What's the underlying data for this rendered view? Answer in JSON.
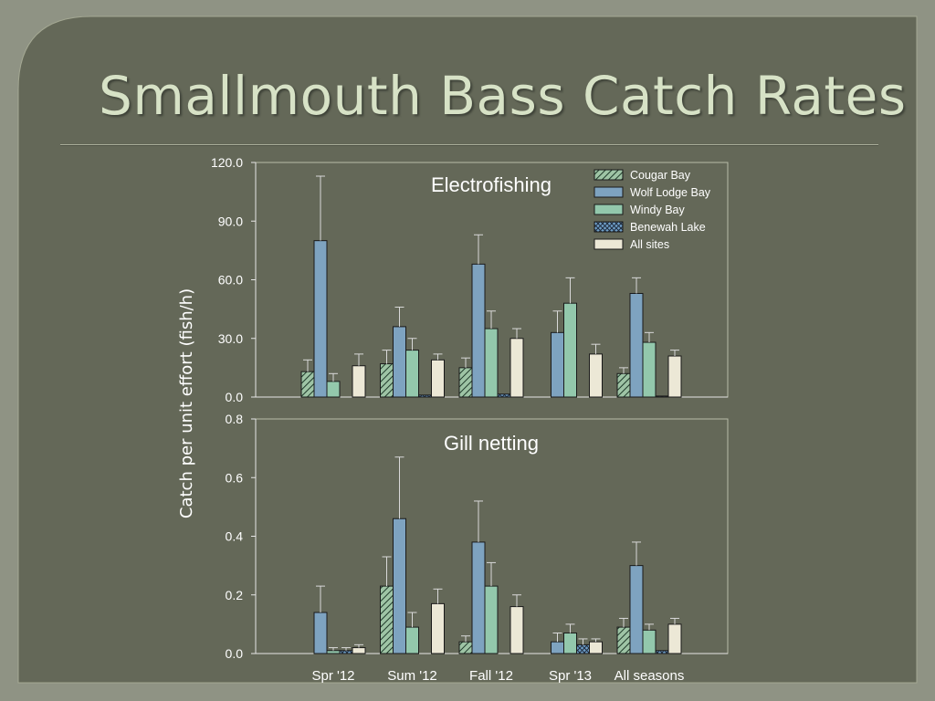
{
  "slide": {
    "title": "Smallmouth Bass Catch Rates",
    "colors": {
      "background": "#646858",
      "outer": "#8f9384",
      "title_text": "#d7e2c6",
      "axis_text": "#ffffff"
    }
  },
  "chart_data": {
    "type": "bar",
    "ylabel": "Catch per unit effort (fish/h)",
    "categories": [
      "Spr '12",
      "Sum '12",
      "Fall '12",
      "Spr '13",
      "All seasons"
    ],
    "legend": {
      "placement": "top-right",
      "entries": [
        {
          "name": "Cougar Bay",
          "color": "#9ec4a5",
          "pattern": "diagonal-hatch"
        },
        {
          "name": "Wolf Lodge Bay",
          "color": "#7ea3c0",
          "pattern": "solid"
        },
        {
          "name": "Windy Bay",
          "color": "#93c8ac",
          "pattern": "solid"
        },
        {
          "name": "Benewah Lake",
          "color": "#6f9fc8",
          "pattern": "crosshatch"
        },
        {
          "name": "All sites",
          "color": "#ece8d6",
          "pattern": "solid"
        }
      ]
    },
    "panels": [
      {
        "title": "Electrofishing",
        "ylim": [
          0,
          120
        ],
        "yticks": [
          "0.0",
          "30.0",
          "60.0",
          "90.0",
          "120.0"
        ],
        "series": [
          {
            "name": "Cougar Bay",
            "values": [
              13,
              17,
              15,
              null,
              12
            ],
            "errors": [
              19,
              24,
              20,
              null,
              15
            ]
          },
          {
            "name": "Wolf Lodge Bay",
            "values": [
              80,
              36,
              68,
              33,
              53
            ],
            "errors": [
              113,
              46,
              83,
              44,
              61
            ]
          },
          {
            "name": "Windy Bay",
            "values": [
              8,
              24,
              35,
              48,
              28
            ],
            "errors": [
              12,
              30,
              44,
              61,
              33
            ]
          },
          {
            "name": "Benewah Lake",
            "values": [
              null,
              1,
              1.5,
              null,
              0.5
            ],
            "errors": [
              null,
              null,
              null,
              null,
              null
            ]
          },
          {
            "name": "All sites",
            "values": [
              16,
              19,
              30,
              22,
              21
            ],
            "errors": [
              22,
              22,
              35,
              27,
              24
            ]
          }
        ]
      },
      {
        "title": "Gill netting",
        "ylim": [
          0,
          0.8
        ],
        "yticks": [
          "0.0",
          "0.2",
          "0.4",
          "0.6",
          "0.8"
        ],
        "series": [
          {
            "name": "Cougar Bay",
            "values": [
              null,
              0.23,
              0.04,
              null,
              0.09
            ],
            "errors": [
              null,
              0.33,
              0.06,
              null,
              0.12
            ]
          },
          {
            "name": "Wolf Lodge Bay",
            "values": [
              0.14,
              0.46,
              0.38,
              0.04,
              0.3
            ],
            "errors": [
              0.23,
              0.67,
              0.52,
              0.07,
              0.38
            ]
          },
          {
            "name": "Windy Bay",
            "values": [
              0.01,
              0.09,
              0.23,
              0.07,
              0.08
            ],
            "errors": [
              0.02,
              0.14,
              0.31,
              0.1,
              0.1
            ]
          },
          {
            "name": "Benewah Lake",
            "values": [
              0.01,
              null,
              null,
              0.03,
              0.01
            ],
            "errors": [
              0.02,
              null,
              null,
              0.05,
              null
            ]
          },
          {
            "name": "All sites",
            "values": [
              0.02,
              0.17,
              0.16,
              0.04,
              0.1
            ],
            "errors": [
              0.03,
              0.22,
              0.2,
              0.05,
              0.12
            ]
          }
        ]
      }
    ]
  }
}
